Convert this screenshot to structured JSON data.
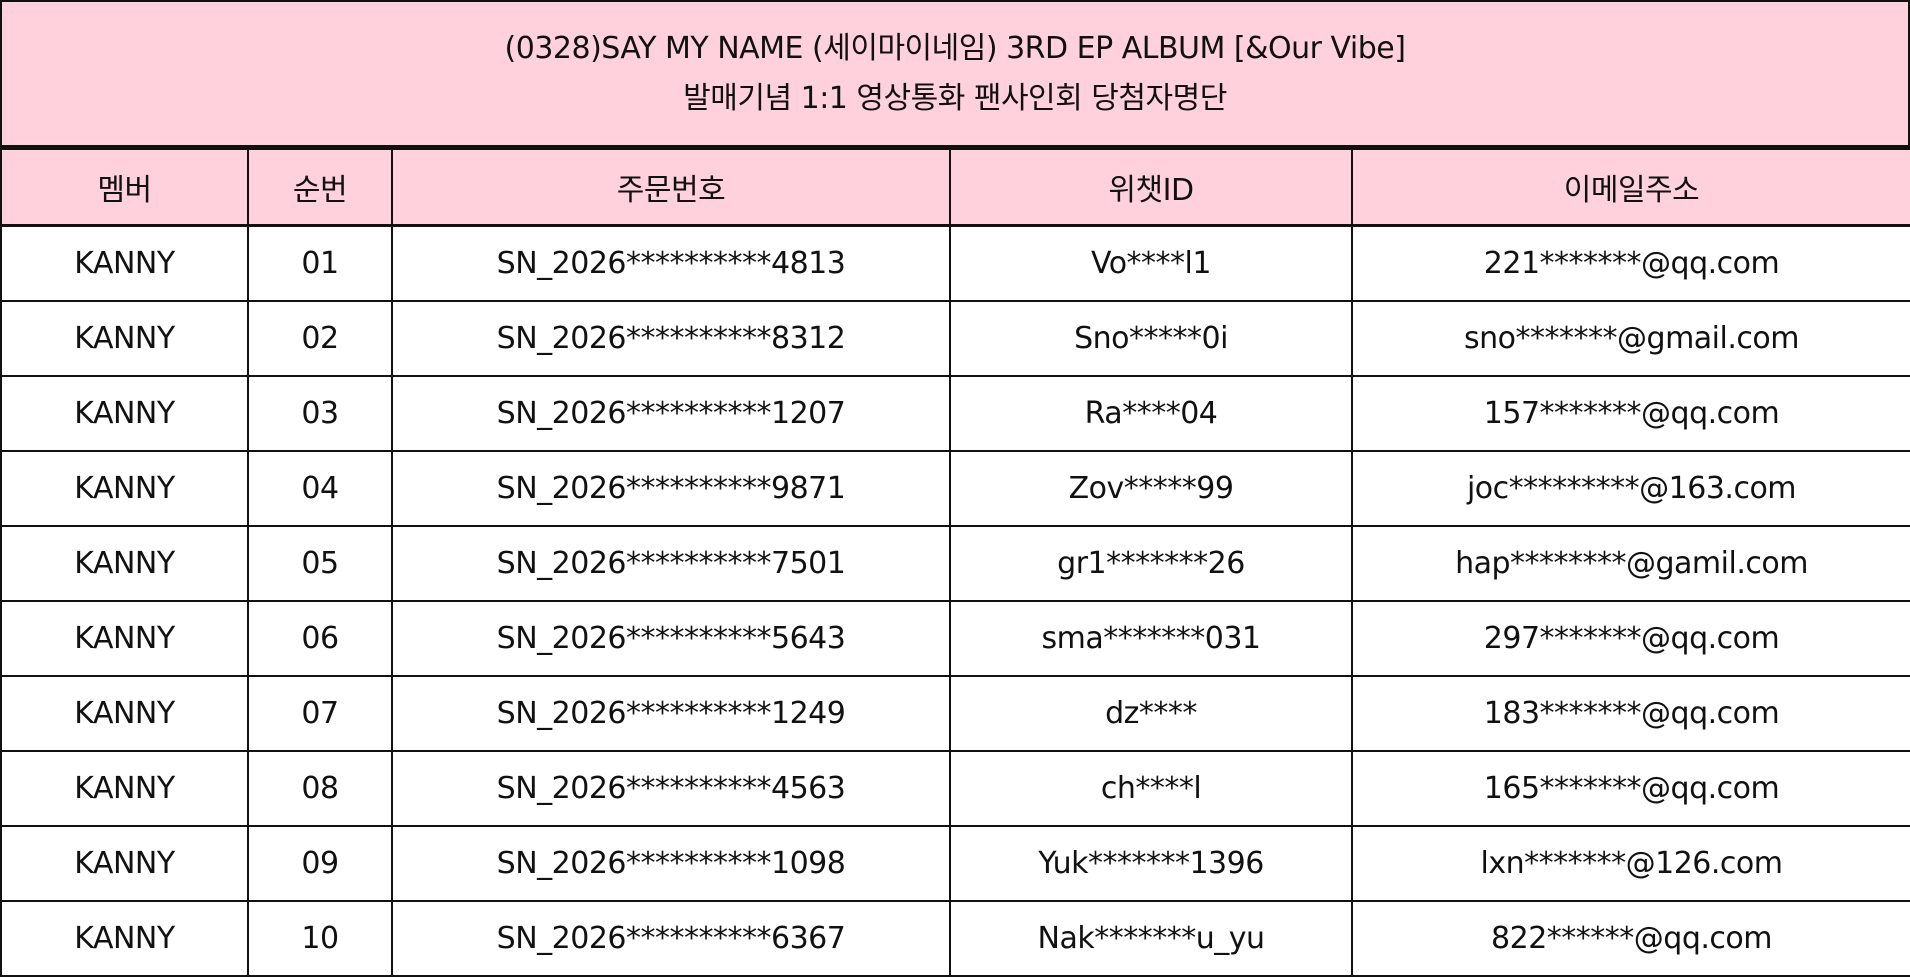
{
  "title": {
    "line1": "(0328)SAY MY NAME (세이마이네임) 3RD EP ALBUM [&Our Vibe]",
    "line2": "발매기념 1:1 영상통화 팬사인회 당첨자명단"
  },
  "colors": {
    "header_bg": "#ffd1dc",
    "border": "#111111"
  },
  "table": {
    "headers": [
      "멤버",
      "순번",
      "주문번호",
      "위챗ID",
      "이메일주소"
    ],
    "rows": [
      [
        "KANNY",
        "01",
        "SN_2026**********4813",
        "Vo****l1",
        "221*******@qq.com"
      ],
      [
        "KANNY",
        "02",
        "SN_2026**********8312",
        "Sno*****0i",
        "sno*******@gmail.com"
      ],
      [
        "KANNY",
        "03",
        "SN_2026**********1207",
        "Ra****04",
        "157*******@qq.com"
      ],
      [
        "KANNY",
        "04",
        "SN_2026**********9871",
        "Zov*****99",
        "joc*********@163.com"
      ],
      [
        "KANNY",
        "05",
        "SN_2026**********7501",
        "gr1*******26",
        "hap********@gamil.com"
      ],
      [
        "KANNY",
        "06",
        "SN_2026**********5643",
        "sma*******031",
        "297*******@qq.com"
      ],
      [
        "KANNY",
        "07",
        "SN_2026**********1249",
        "dz****",
        "183*******@qq.com"
      ],
      [
        "KANNY",
        "08",
        "SN_2026**********4563",
        "ch****l",
        "165*******@qq.com"
      ],
      [
        "KANNY",
        "09",
        "SN_2026**********1098",
        "Yuk*******1396",
        "lxn*******@126.com"
      ],
      [
        "KANNY",
        "10",
        "SN_2026**********6367",
        "Nak*******u_yu",
        "822******@qq.com"
      ]
    ]
  }
}
